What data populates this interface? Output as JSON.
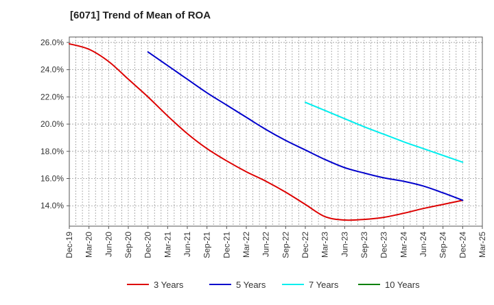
{
  "chart_data": {
    "type": "line",
    "title": "[6071]  Trend of Mean of ROA",
    "xlabel": "",
    "ylabel": "",
    "x_ticks": [
      "Dec-19",
      "Mar-20",
      "Jun-20",
      "Sep-20",
      "Dec-20",
      "Mar-21",
      "Jun-21",
      "Sep-21",
      "Dec-21",
      "Mar-22",
      "Jun-22",
      "Sep-22",
      "Dec-22",
      "Mar-23",
      "Jun-23",
      "Sep-23",
      "Dec-23",
      "Mar-24",
      "Jun-24",
      "Sep-24",
      "Dec-24",
      "Mar-25"
    ],
    "y_ticks": [
      "14.0%",
      "16.0%",
      "18.0%",
      "20.0%",
      "22.0%",
      "24.0%",
      "26.0%"
    ],
    "y_tick_values": [
      14,
      16,
      18,
      20,
      22,
      24,
      26
    ],
    "ylim": [
      12.5,
      26.4
    ],
    "grid": true,
    "legend_position": "bottom",
    "series": [
      {
        "name": "3 Years",
        "color": "#dd0000",
        "start_index": 0,
        "values": [
          25.9,
          25.5,
          24.6,
          23.3,
          22.0,
          20.6,
          19.3,
          18.2,
          17.3,
          16.5,
          15.8,
          15.0,
          14.1,
          13.2,
          12.95,
          13.0,
          13.15,
          13.45,
          13.8,
          14.1,
          14.4
        ]
      },
      {
        "name": "5 Years",
        "color": "#0000cc",
        "start_index": 4,
        "values": [
          25.3,
          24.3,
          23.3,
          22.3,
          21.4,
          20.5,
          19.6,
          18.8,
          18.1,
          17.4,
          16.8,
          16.4,
          16.05,
          15.8,
          15.45,
          14.95,
          14.4
        ]
      },
      {
        "name": "7 Years",
        "color": "#00eeee",
        "start_index": 12,
        "values": [
          21.6,
          21.0,
          20.4,
          19.8,
          19.25,
          18.7,
          18.2,
          17.7,
          17.2
        ]
      },
      {
        "name": "10 Years",
        "color": "#008000",
        "start_index": 0,
        "values": []
      }
    ]
  }
}
